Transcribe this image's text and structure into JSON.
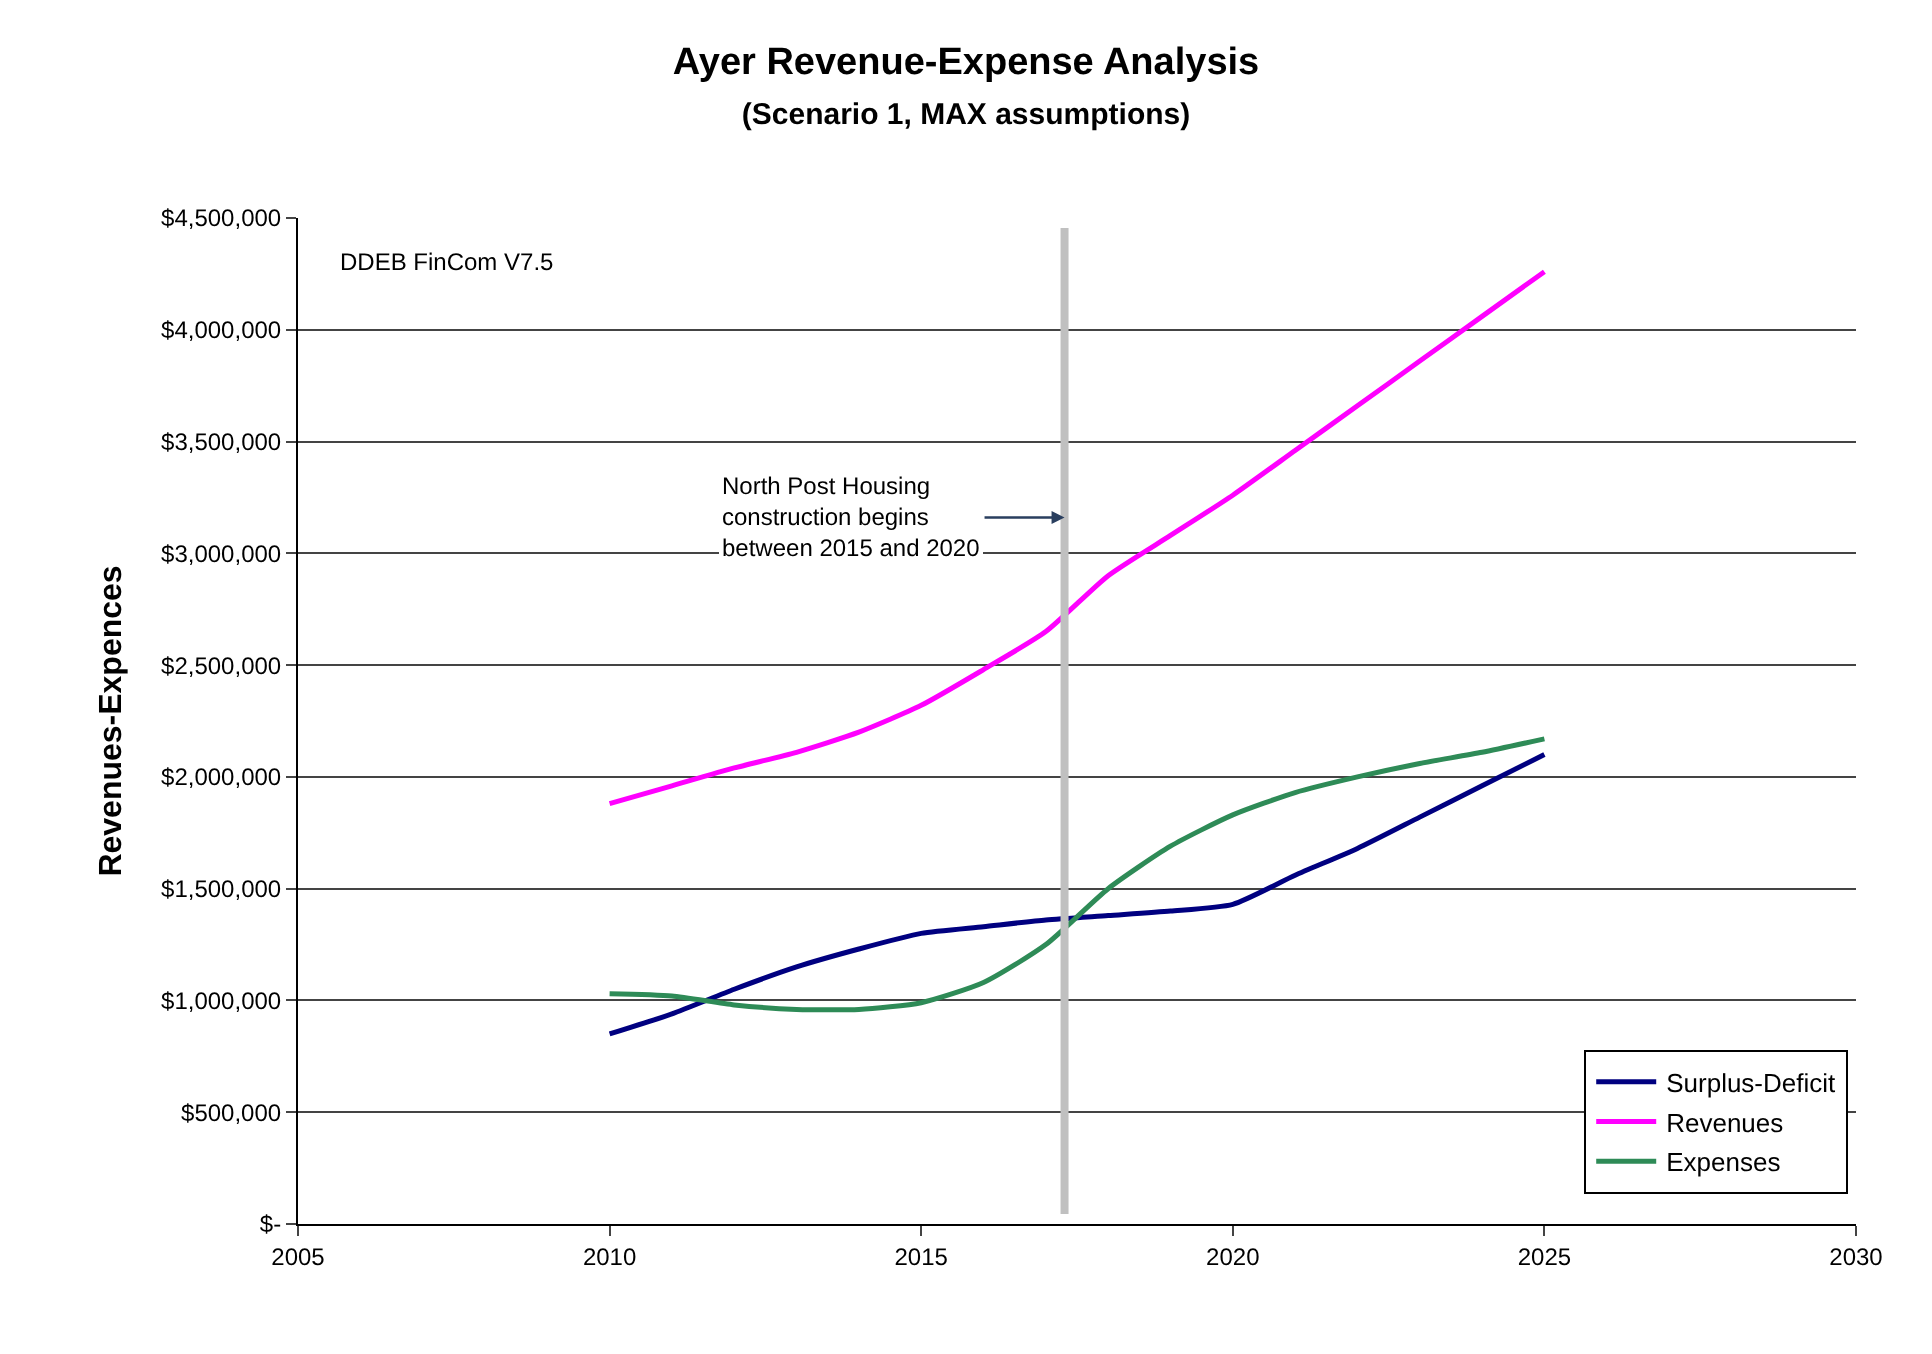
{
  "chart_data": {
    "type": "line",
    "title": "Ayer Revenue-Expense Analysis",
    "subtitle": "(Scenario 1, MAX assumptions)",
    "ylabel": "Revenues-Expences",
    "x": [
      2010,
      2011,
      2012,
      2013,
      2014,
      2015,
      2016,
      2017,
      2018,
      2019,
      2020,
      2021,
      2022,
      2023,
      2024,
      2025
    ],
    "series": [
      {
        "name": "Surplus-Deficit",
        "color": "#000080",
        "values": [
          850000,
          940000,
          1050000,
          1150000,
          1230000,
          1300000,
          1330000,
          1360000,
          1380000,
          1400000,
          1430000,
          1560000,
          1680000,
          1820000,
          1960000,
          2100000
        ]
      },
      {
        "name": "Revenues",
        "color": "#ff00ff",
        "values": [
          1880000,
          1960000,
          2040000,
          2110000,
          2200000,
          2320000,
          2480000,
          2650000,
          2900000,
          3080000,
          3260000,
          3460000,
          3660000,
          3860000,
          4060000,
          4260000
        ]
      },
      {
        "name": "Expenses",
        "color": "#2e8b57",
        "values": [
          1030000,
          1020000,
          980000,
          960000,
          960000,
          990000,
          1080000,
          1250000,
          1500000,
          1690000,
          1830000,
          1930000,
          2000000,
          2060000,
          2110000,
          2170000
        ]
      }
    ],
    "xlim": [
      2005,
      2030
    ],
    "xticks": [
      2005,
      2010,
      2015,
      2020,
      2025,
      2030
    ],
    "ylim": [
      0,
      4500000
    ],
    "yticks": [
      {
        "value": 0,
        "label": "$-"
      },
      {
        "value": 500000,
        "label": "$500,000"
      },
      {
        "value": 1000000,
        "label": "$1,000,000"
      },
      {
        "value": 1500000,
        "label": "$1,500,000"
      },
      {
        "value": 2000000,
        "label": "$2,000,000"
      },
      {
        "value": 2500000,
        "label": "$2,500,000"
      },
      {
        "value": 3000000,
        "label": "$3,000,000"
      },
      {
        "value": 3500000,
        "label": "$3,500,000"
      },
      {
        "value": 4000000,
        "label": "$4,000,000"
      },
      {
        "value": 4500000,
        "label": "$4,500,000"
      }
    ],
    "ref_lines": [
      {
        "axis": "x",
        "value": 2017.3,
        "color": "#c0c0c0"
      }
    ],
    "annotations": [
      "DDEB FinCom V7.5",
      {
        "text": "North Post Housing\nconstruction begins\nbetween 2015 and 2020",
        "x": 2017.3,
        "y": 3160000
      }
    ],
    "grid": "y",
    "legend": "bottom right",
    "marker": "none",
    "line_style": "solid"
  }
}
